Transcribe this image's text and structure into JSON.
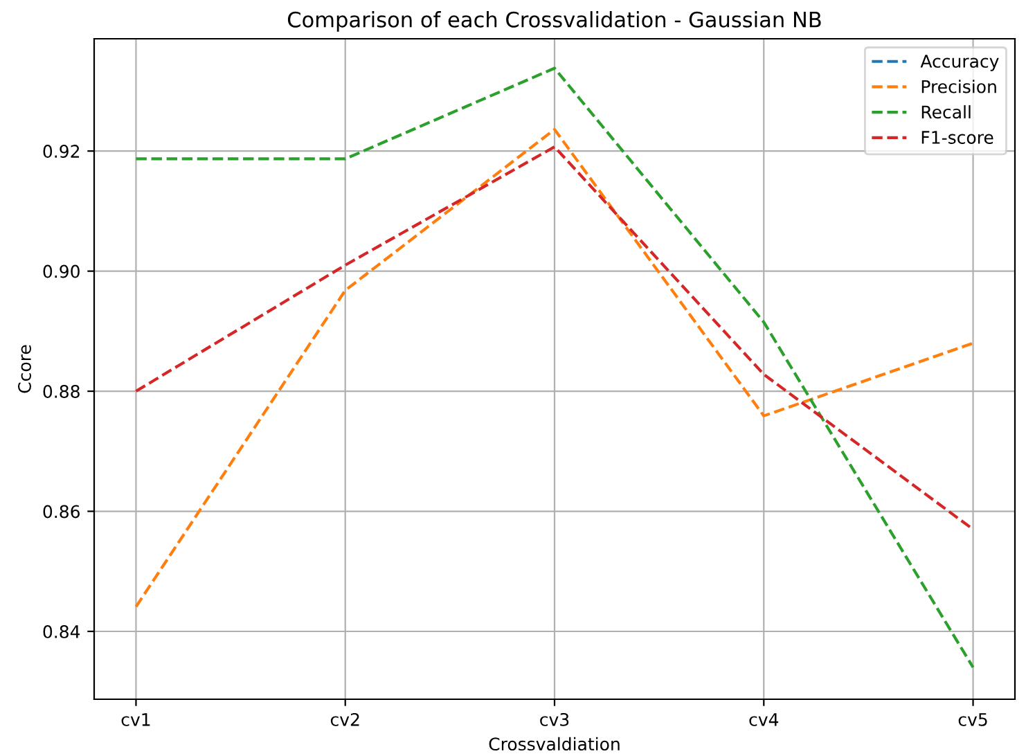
{
  "chart_data": {
    "type": "line",
    "title": "Comparison of each Crossvalidation - Gaussian NB",
    "xlabel": "Crossvaldiation",
    "ylabel": "Ccore",
    "categories": [
      "cv1",
      "cv2",
      "cv3",
      "cv4",
      "cv5"
    ],
    "series": [
      {
        "name": "Accuracy",
        "color": "#1f77b4",
        "values": [
          null,
          null,
          null,
          null,
          null
        ]
      },
      {
        "name": "Precision",
        "color": "#ff7f0e",
        "values": [
          0.8441,
          0.8968,
          0.9236,
          0.8759,
          0.888
        ]
      },
      {
        "name": "Recall",
        "color": "#2ca02c",
        "values": [
          0.9187,
          0.9187,
          0.9338,
          0.8915,
          0.834
        ]
      },
      {
        "name": "F1-score",
        "color": "#d62728",
        "values": [
          0.88,
          0.901,
          0.9207,
          0.8828,
          0.857
        ]
      }
    ],
    "ylim": [
      0.8287,
      0.9387
    ],
    "yticks": [
      0.84,
      0.86,
      0.88,
      {
        "value": 0.9,
        "label": "0.90"
      },
      {
        "value": 0.92,
        "label": "0.92"
      }
    ],
    "grid": true,
    "legend": "top right",
    "line_style": "dashed",
    "marker": "none"
  }
}
